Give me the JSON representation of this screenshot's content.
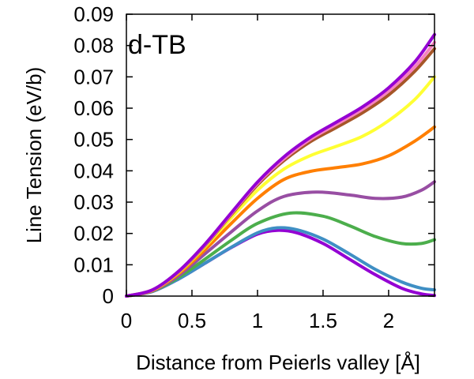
{
  "chart_data": {
    "type": "line",
    "title": "",
    "panel_label": "d-TB",
    "xlabel": "Distance from Peierls valley [Å]",
    "ylabel": "Line Tension (eV/b)",
    "xlim": [
      0,
      2.35
    ],
    "ylim": [
      0,
      0.09
    ],
    "xticks": [
      0,
      0.5,
      1,
      1.5,
      2
    ],
    "xtick_labels": [
      "0",
      "0.5",
      "1",
      "1.5",
      "2"
    ],
    "yticks": [
      0,
      0.01,
      0.02,
      0.03,
      0.04,
      0.05,
      0.06,
      0.07,
      0.08,
      0.09
    ],
    "ytick_labels": [
      "0",
      "0.01",
      "0.02",
      "0.03",
      "0.04",
      "0.05",
      "0.06",
      "0.07",
      "0.08",
      "0.09"
    ],
    "grid": false,
    "legend": false,
    "series": [
      {
        "color": "#9400d3",
        "x": [
          0,
          0.2,
          0.4,
          0.6,
          0.8,
          1.0,
          1.15,
          1.3,
          1.5,
          1.7,
          1.9,
          2.1,
          2.25,
          2.35
        ],
        "y": [
          0,
          0.0015,
          0.0055,
          0.0105,
          0.0155,
          0.0198,
          0.021,
          0.0202,
          0.0168,
          0.0118,
          0.0068,
          0.0025,
          0.0007,
          0.0002
        ]
      },
      {
        "color": "#3f8fc4",
        "x": [
          0,
          0.2,
          0.4,
          0.6,
          0.8,
          1.0,
          1.15,
          1.3,
          1.5,
          1.7,
          1.9,
          2.1,
          2.25,
          2.35
        ],
        "y": [
          0,
          0.0015,
          0.0055,
          0.0105,
          0.0156,
          0.0202,
          0.0218,
          0.0212,
          0.0182,
          0.0135,
          0.0085,
          0.0045,
          0.0025,
          0.002
        ]
      },
      {
        "color": "#4cae4c",
        "x": [
          0,
          0.2,
          0.4,
          0.6,
          0.8,
          1.0,
          1.25,
          1.5,
          1.7,
          1.9,
          2.1,
          2.25,
          2.35
        ],
        "y": [
          0,
          0.0016,
          0.006,
          0.0118,
          0.0178,
          0.0232,
          0.0265,
          0.0255,
          0.0225,
          0.019,
          0.0168,
          0.0168,
          0.018
        ]
      },
      {
        "color": "#984ea3",
        "x": [
          0,
          0.2,
          0.4,
          0.6,
          0.8,
          1.0,
          1.2,
          1.45,
          1.7,
          1.9,
          2.1,
          2.25,
          2.35
        ],
        "y": [
          0,
          0.0017,
          0.0066,
          0.0135,
          0.0205,
          0.0272,
          0.0318,
          0.0332,
          0.0323,
          0.0312,
          0.0316,
          0.0338,
          0.0365
        ]
      },
      {
        "color": "#ff7f00",
        "x": [
          0,
          0.2,
          0.4,
          0.6,
          0.8,
          1.0,
          1.2,
          1.4,
          1.6,
          1.8,
          2.0,
          2.2,
          2.35
        ],
        "y": [
          0,
          0.0018,
          0.0072,
          0.0148,
          0.0232,
          0.0312,
          0.0372,
          0.0398,
          0.041,
          0.0422,
          0.0448,
          0.0495,
          0.054
        ]
      },
      {
        "color": "#ffff33",
        "x": [
          0,
          0.2,
          0.4,
          0.6,
          0.8,
          1.0,
          1.2,
          1.4,
          1.6,
          1.8,
          2.0,
          2.2,
          2.35
        ],
        "y": [
          0,
          0.0019,
          0.0076,
          0.0158,
          0.025,
          0.0338,
          0.0405,
          0.0448,
          0.0478,
          0.051,
          0.056,
          0.0628,
          0.07
        ]
      },
      {
        "color": "#a65628",
        "x": [
          0,
          0.2,
          0.4,
          0.6,
          0.8,
          1.0,
          1.2,
          1.4,
          1.6,
          1.8,
          2.0,
          2.2,
          2.35
        ],
        "y": [
          0,
          0.002,
          0.0078,
          0.0162,
          0.026,
          0.0355,
          0.0432,
          0.0492,
          0.0538,
          0.0585,
          0.0642,
          0.0718,
          0.079
        ]
      },
      {
        "color": "#f781bf",
        "x": [
          0,
          0.2,
          0.4,
          0.6,
          0.8,
          1.0,
          1.2,
          1.4,
          1.6,
          1.8,
          2.0,
          2.2,
          2.35
        ],
        "y": [
          0,
          0.002,
          0.0079,
          0.0164,
          0.0263,
          0.036,
          0.0438,
          0.05,
          0.0548,
          0.0596,
          0.0655,
          0.0732,
          0.081
        ]
      },
      {
        "color": "#9400d3",
        "x": [
          0,
          0.2,
          0.4,
          0.6,
          0.8,
          1.0,
          1.2,
          1.4,
          1.6,
          1.8,
          2.0,
          2.2,
          2.35
        ],
        "y": [
          0,
          0.002,
          0.008,
          0.0166,
          0.0266,
          0.0364,
          0.0444,
          0.0506,
          0.0555,
          0.0604,
          0.0665,
          0.0748,
          0.0835
        ]
      }
    ]
  }
}
